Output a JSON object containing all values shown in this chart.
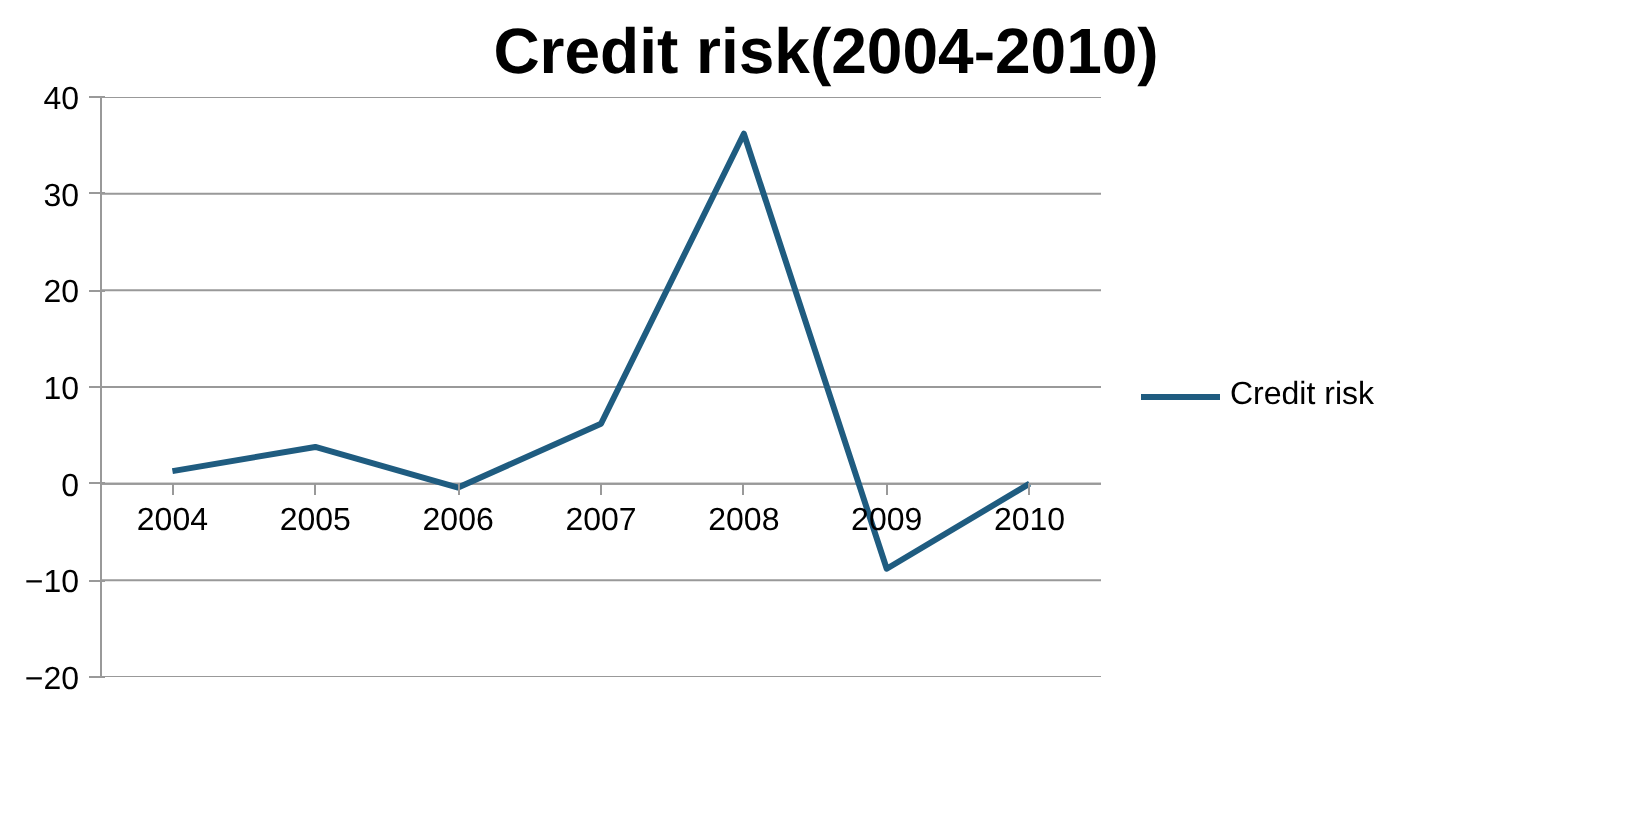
{
  "chart_data": {
    "type": "line",
    "title": "Credit risk(2004-2010)",
    "categories": [
      "2004",
      "2005",
      "2006",
      "2007",
      "2008",
      "2009",
      "2010"
    ],
    "series": [
      {
        "name": "Credit risk",
        "color": "#1f5c80",
        "values": [
          1.3,
          3.8,
          -0.4,
          6.2,
          36.2,
          -8.8,
          0
        ]
      }
    ],
    "ylim": [
      -20,
      40
    ],
    "yticks": [
      -20,
      -10,
      0,
      10,
      20,
      30,
      40
    ],
    "grid": "y",
    "legend": "right",
    "marker": "none",
    "line_style": "solid"
  }
}
